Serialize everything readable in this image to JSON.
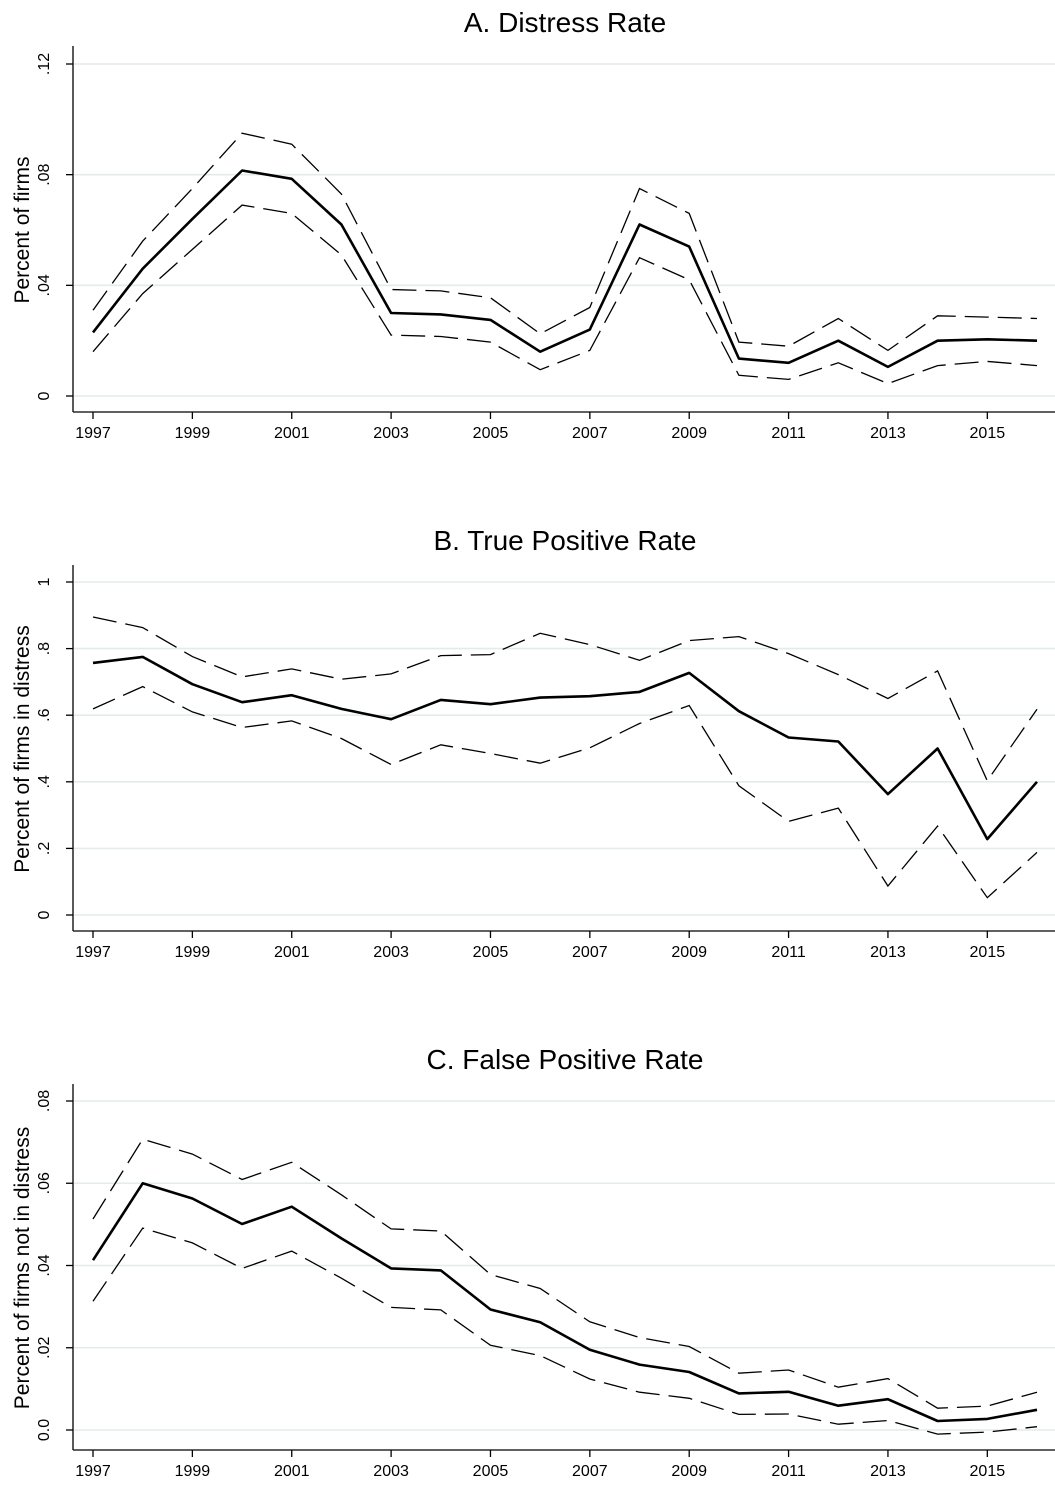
{
  "chart_data": [
    {
      "type": "line",
      "title": "A. Distress Rate",
      "xlabel": "",
      "ylabel": "Percent of firms",
      "ylim": [
        0,
        0.12
      ],
      "yticks": [
        0,
        0.04,
        0.08,
        0.12
      ],
      "ytick_labels": [
        "0",
        ".04",
        ".08",
        ".12"
      ],
      "xlim": [
        1997,
        2016
      ],
      "xticks": [
        1997,
        1999,
        2001,
        2003,
        2005,
        2007,
        2009,
        2011,
        2013,
        2015
      ],
      "xtick_labels": [
        "1997",
        "1999",
        "2001",
        "2003",
        "2005",
        "2007",
        "2009",
        "2011",
        "2013",
        "2015"
      ],
      "grid": true,
      "x": [
        1997,
        1998,
        1999,
        2000,
        2001,
        2002,
        2003,
        2004,
        2005,
        2006,
        2007,
        2008,
        2009,
        2010,
        2011,
        2012,
        2013,
        2014,
        2015,
        2016
      ],
      "series": [
        {
          "style": "solid",
          "values": [
            0.023,
            0.046,
            0.064,
            0.0815,
            0.0785,
            0.062,
            0.03,
            0.0295,
            0.0275,
            0.016,
            0.024,
            0.062,
            0.054,
            0.0135,
            0.012,
            0.02,
            0.0105,
            0.02,
            0.0205,
            0.02
          ]
        },
        {
          "style": "dashed",
          "values": [
            0.031,
            0.056,
            0.075,
            0.095,
            0.091,
            0.073,
            0.0385,
            0.038,
            0.0355,
            0.0225,
            0.032,
            0.075,
            0.066,
            0.0195,
            0.018,
            0.028,
            0.0165,
            0.029,
            0.0285,
            0.028
          ]
        },
        {
          "style": "dashed",
          "values": [
            0.016,
            0.037,
            0.053,
            0.069,
            0.066,
            0.051,
            0.022,
            0.0215,
            0.0195,
            0.0095,
            0.0165,
            0.05,
            0.042,
            0.0075,
            0.006,
            0.012,
            0.0045,
            0.011,
            0.0125,
            0.011
          ]
        }
      ]
    },
    {
      "type": "line",
      "title": "B. True Positive Rate",
      "xlabel": "",
      "ylabel": "Percent of firms in distress",
      "ylim": [
        0,
        1
      ],
      "yticks": [
        0,
        0.2,
        0.4,
        0.6,
        0.8,
        1
      ],
      "ytick_labels": [
        "0",
        ".2",
        ".4",
        ".6",
        ".8",
        "1"
      ],
      "xlim": [
        1997,
        2016
      ],
      "xticks": [
        1997,
        1999,
        2001,
        2003,
        2005,
        2007,
        2009,
        2011,
        2013,
        2015
      ],
      "xtick_labels": [
        "1997",
        "1999",
        "2001",
        "2003",
        "2005",
        "2007",
        "2009",
        "2011",
        "2013",
        "2015"
      ],
      "grid": true,
      "x": [
        1997,
        1998,
        1999,
        2000,
        2001,
        2002,
        2003,
        2004,
        2005,
        2006,
        2007,
        2008,
        2009,
        2010,
        2011,
        2012,
        2013,
        2014,
        2015,
        2016
      ],
      "series": [
        {
          "style": "solid",
          "values": [
            0.757,
            0.775,
            0.693,
            0.639,
            0.66,
            0.619,
            0.588,
            0.646,
            0.633,
            0.653,
            0.657,
            0.67,
            0.727,
            0.612,
            0.533,
            0.521,
            0.363,
            0.5,
            0.228,
            0.4
          ]
        },
        {
          "style": "dashed",
          "values": [
            0.895,
            0.863,
            0.776,
            0.715,
            0.739,
            0.708,
            0.724,
            0.779,
            0.782,
            0.846,
            0.812,
            0.765,
            0.824,
            0.836,
            0.785,
            0.722,
            0.65,
            0.733,
            0.403,
            0.618
          ]
        },
        {
          "style": "dashed",
          "values": [
            0.619,
            0.686,
            0.61,
            0.563,
            0.583,
            0.53,
            0.452,
            0.511,
            0.485,
            0.456,
            0.502,
            0.575,
            0.629,
            0.388,
            0.281,
            0.321,
            0.087,
            0.267,
            0.052,
            0.188
          ]
        }
      ]
    },
    {
      "type": "line",
      "title": "C. False Positive Rate",
      "xlabel": "",
      "ylabel": "Percent of firms not in distress",
      "ylim": [
        0,
        0.08
      ],
      "yticks": [
        0,
        0.02,
        0.04,
        0.06,
        0.08
      ],
      "ytick_labels": [
        "0.0",
        ".02",
        ".04",
        ".06",
        ".08"
      ],
      "xlim": [
        1997,
        2016
      ],
      "xticks": [
        1997,
        1999,
        2001,
        2003,
        2005,
        2007,
        2009,
        2011,
        2013,
        2015
      ],
      "xtick_labels": [
        "1997",
        "1999",
        "2001",
        "2003",
        "2005",
        "2007",
        "2009",
        "2011",
        "2013",
        "2015"
      ],
      "grid": true,
      "x": [
        1997,
        1998,
        1999,
        2000,
        2001,
        2002,
        2003,
        2004,
        2005,
        2006,
        2007,
        2008,
        2009,
        2010,
        2011,
        2012,
        2013,
        2014,
        2015,
        2016
      ],
      "series": [
        {
          "style": "solid",
          "values": [
            0.0413,
            0.06,
            0.0563,
            0.0501,
            0.0543,
            0.0466,
            0.0393,
            0.0388,
            0.0293,
            0.0262,
            0.0195,
            0.0159,
            0.0141,
            0.0089,
            0.0093,
            0.0059,
            0.0075,
            0.0022,
            0.0027,
            0.0049
          ]
        },
        {
          "style": "dashed",
          "values": [
            0.0513,
            0.0707,
            0.0671,
            0.0609,
            0.0651,
            0.0572,
            0.0489,
            0.0484,
            0.0378,
            0.0344,
            0.0263,
            0.0225,
            0.0203,
            0.0138,
            0.0146,
            0.0104,
            0.0125,
            0.0053,
            0.0058,
            0.0092
          ]
        },
        {
          "style": "dashed",
          "values": [
            0.0313,
            0.0491,
            0.0455,
            0.0393,
            0.0435,
            0.0369,
            0.0298,
            0.0292,
            0.0206,
            0.0181,
            0.0124,
            0.0092,
            0.0077,
            0.0038,
            0.0039,
            0.0014,
            0.0023,
            -0.001,
            -0.0005,
            0.0008
          ]
        }
      ]
    }
  ]
}
